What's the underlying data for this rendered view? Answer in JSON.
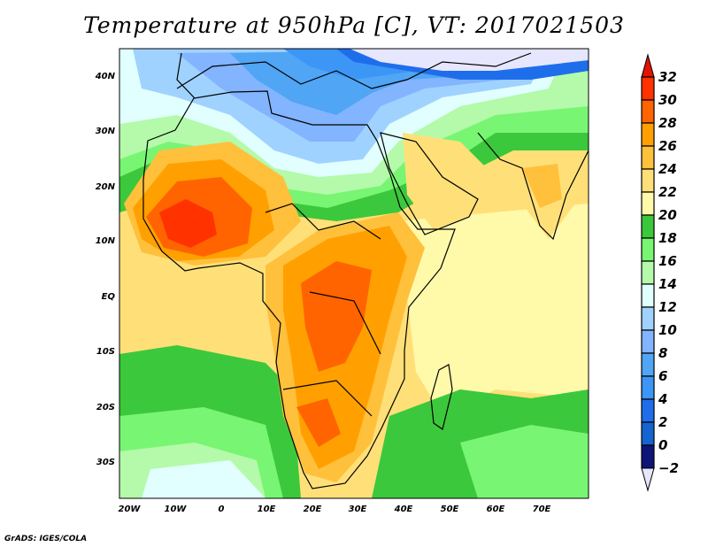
{
  "title": "Temperature at 950hPa [C], VT: 2017021503",
  "credit": "GrADS: IGES/COLA",
  "lat_labels": [
    "40N",
    "30N",
    "20N",
    "10N",
    "EQ",
    "10S",
    "20S",
    "30S"
  ],
  "lon_labels": [
    "20W",
    "10W",
    "0",
    "10E",
    "20E",
    "30E",
    "40E",
    "50E",
    "60E",
    "70E"
  ],
  "colorbar": {
    "labels": [
      "32",
      "30",
      "28",
      "26",
      "24",
      "22",
      "20",
      "18",
      "16",
      "14",
      "12",
      "10",
      "8",
      "6",
      "4",
      "2",
      "0",
      "-2"
    ],
    "colors": [
      "#ff3200",
      "#ff6400",
      "#ffa000",
      "#ffc03c",
      "#ffe078",
      "#fffaaa",
      "#3cc83c",
      "#78f573",
      "#b4faaa",
      "#e1ffff",
      "#a0d2ff",
      "#82b4ff",
      "#50a5f5",
      "#3c96f5",
      "#1e6eeb",
      "#1464d2",
      "#0f1478"
    ],
    "over_color": "#e11400",
    "under_color": "#e6e6ff"
  }
}
